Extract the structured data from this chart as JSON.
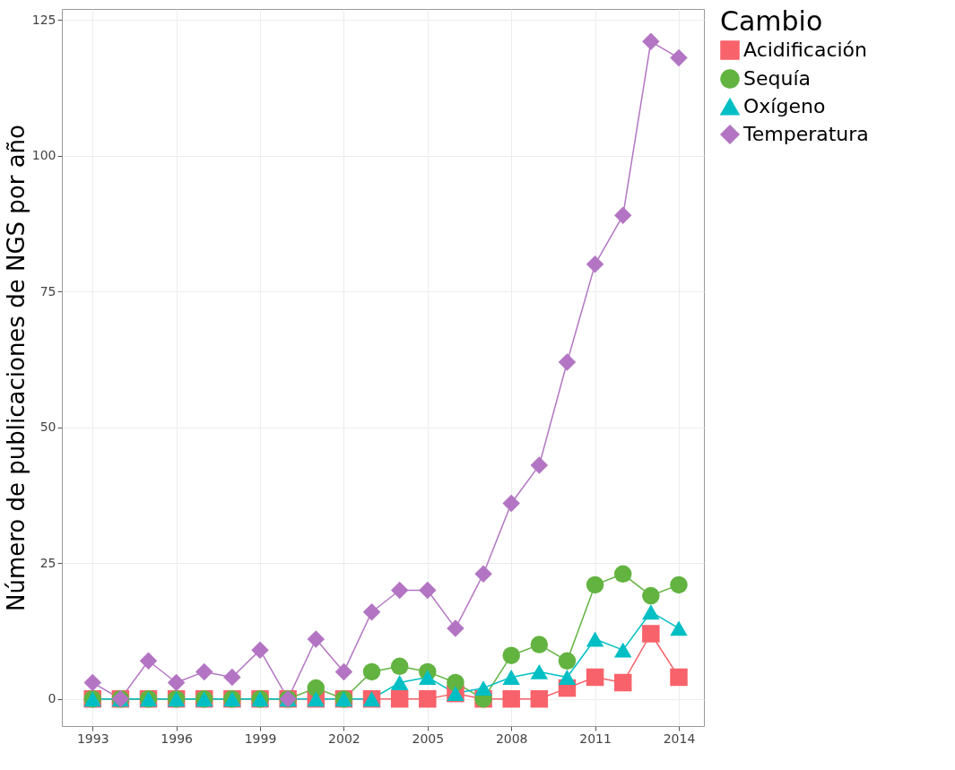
{
  "chart_data": {
    "type": "line",
    "ylabel": "Número de publicaciones de NGS por año",
    "legend_title": "Cambio",
    "x": [
      1993,
      1994,
      1995,
      1996,
      1997,
      1998,
      1999,
      2000,
      2001,
      2002,
      2003,
      2004,
      2005,
      2006,
      2007,
      2008,
      2009,
      2010,
      2011,
      2012,
      2013,
      2014
    ],
    "xlim": [
      1991.9,
      2014.9
    ],
    "xticks": [
      1993,
      1996,
      1999,
      2002,
      2005,
      2008,
      2011,
      2014
    ],
    "ylim": [
      -5,
      127
    ],
    "yticks": [
      0,
      25,
      50,
      75,
      100,
      125
    ],
    "grid": true,
    "legend": "right",
    "series": [
      {
        "name": "Acidificación",
        "color": "#f8626a",
        "marker": "square",
        "values": [
          0,
          0,
          0,
          0,
          0,
          0,
          0,
          0,
          0,
          0,
          0,
          0,
          0,
          1,
          0,
          0,
          0,
          2,
          4,
          3,
          12,
          4
        ]
      },
      {
        "name": "Sequía",
        "color": "#62b340",
        "marker": "circle",
        "values": [
          0,
          0,
          0,
          0,
          0,
          0,
          0,
          0,
          2,
          0,
          5,
          6,
          5,
          3,
          0,
          8,
          10,
          7,
          21,
          23,
          19,
          21
        ]
      },
      {
        "name": "Oxígeno",
        "color": "#00bfc4",
        "marker": "triangle",
        "values": [
          0,
          0,
          0,
          0,
          0,
          0,
          0,
          0,
          0,
          0,
          0,
          3,
          4,
          1,
          2,
          4,
          5,
          4,
          11,
          9,
          16,
          13
        ]
      },
      {
        "name": "Temperatura",
        "color": "#b375c3",
        "marker": "diamond",
        "values": [
          3,
          0,
          7,
          3,
          5,
          4,
          9,
          0,
          11,
          5,
          16,
          20,
          20,
          13,
          23,
          36,
          43,
          62,
          80,
          89,
          121,
          118
        ]
      }
    ]
  }
}
